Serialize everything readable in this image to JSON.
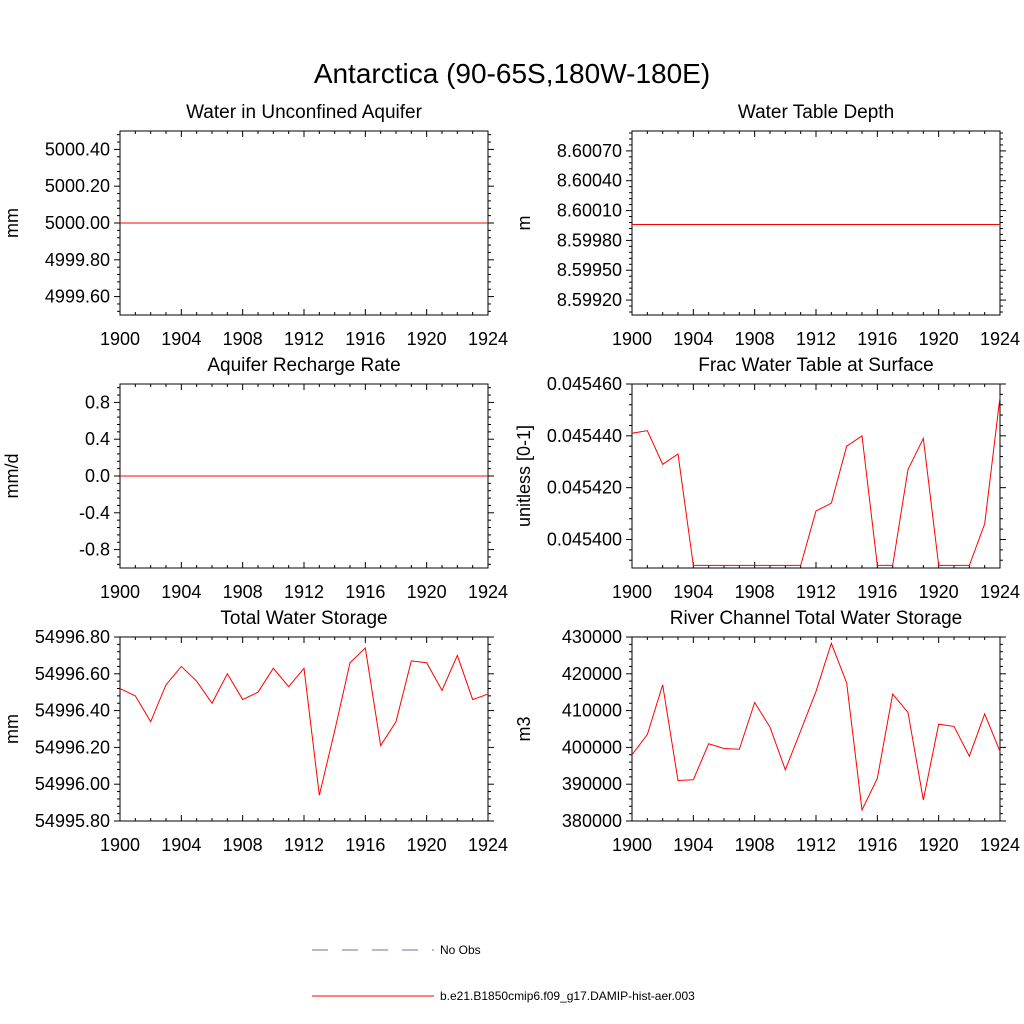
{
  "figure": {
    "title": "Antarctica (90-65S,180W-180E)"
  },
  "colors": {
    "model": "#ff0000",
    "obs": "#6f6fa8",
    "axis": "#000000"
  },
  "legend": {
    "entries": [
      {
        "label": "No Obs",
        "style": "dashed",
        "color": "#6f6fa8"
      },
      {
        "label": "b.e21.B1850cmip6.f09_g17.DAMIP-hist-aer.003",
        "style": "solid",
        "color": "#ff0000"
      }
    ]
  },
  "chart_data": [
    {
      "type": "line",
      "title": "Water in Unconfined Aquifer",
      "ylabel": "mm",
      "xlim": [
        1900,
        1924
      ],
      "ylim": [
        4999.5,
        5000.5
      ],
      "x_ticks": [
        "1900",
        "1904",
        "1908",
        "1912",
        "1916",
        "1920",
        "1924"
      ],
      "y_ticks": [
        {
          "value": 4999.6,
          "label": "4999.60"
        },
        {
          "value": 4999.8,
          "label": "4999.80"
        },
        {
          "value": 5000.0,
          "label": "5000.00"
        },
        {
          "value": 5000.2,
          "label": "5000.20"
        },
        {
          "value": 5000.4,
          "label": "5000.40"
        }
      ],
      "series": [
        {
          "x": [
            1900,
            1924
          ],
          "y": [
            5000.0,
            5000.0
          ]
        }
      ]
    },
    {
      "type": "line",
      "title": "Water Table Depth",
      "ylabel": "m",
      "xlim": [
        1900,
        1924
      ],
      "ylim": [
        8.59905,
        8.6009
      ],
      "x_ticks": [
        "1900",
        "1904",
        "1908",
        "1912",
        "1916",
        "1920",
        "1924"
      ],
      "y_ticks": [
        {
          "value": 8.5992,
          "label": "8.59920"
        },
        {
          "value": 8.5995,
          "label": "8.59950"
        },
        {
          "value": 8.5998,
          "label": "8.59980"
        },
        {
          "value": 8.6001,
          "label": "8.60010"
        },
        {
          "value": 8.6004,
          "label": "8.60040"
        },
        {
          "value": 8.6007,
          "label": "8.60070"
        }
      ],
      "series": [
        {
          "x": [
            1900,
            1924
          ],
          "y": [
            8.59996,
            8.59996
          ]
        }
      ]
    },
    {
      "type": "line",
      "title": "Aquifer Recharge Rate",
      "ylabel": "mm/d",
      "xlim": [
        1900,
        1924
      ],
      "ylim": [
        -1.0,
        1.0
      ],
      "x_ticks": [
        "1900",
        "1904",
        "1908",
        "1912",
        "1916",
        "1920",
        "1924"
      ],
      "y_ticks": [
        {
          "value": -0.8,
          "label": "-0.8"
        },
        {
          "value": -0.4,
          "label": "-0.4"
        },
        {
          "value": 0.0,
          "label": "0.0"
        },
        {
          "value": 0.4,
          "label": "0.4"
        },
        {
          "value": 0.8,
          "label": "0.8"
        }
      ],
      "series": [
        {
          "x": [
            1900,
            1924
          ],
          "y": [
            0.0,
            0.0
          ]
        }
      ]
    },
    {
      "type": "line",
      "title": "Frac Water Table at Surface",
      "ylabel": "unitless [0-1]",
      "xlim": [
        1900,
        1924
      ],
      "ylim": [
        0.045389,
        0.04546
      ],
      "x_ticks": [
        "1900",
        "1904",
        "1908",
        "1912",
        "1916",
        "1920",
        "1924"
      ],
      "y_ticks": [
        {
          "value": 0.0454,
          "label": "0.045400"
        },
        {
          "value": 0.04542,
          "label": "0.045420"
        },
        {
          "value": 0.04544,
          "label": "0.045440"
        },
        {
          "value": 0.04546,
          "label": "0.045460"
        }
      ],
      "series": [
        {
          "x": [
            1900,
            1901,
            1902,
            1903,
            1904,
            1905,
            1906,
            1907,
            1908,
            1909,
            1910,
            1911,
            1912,
            1913,
            1914,
            1915,
            1916,
            1917,
            1918,
            1919,
            1920,
            1921,
            1922,
            1923,
            1924
          ],
          "y": [
            0.045441,
            0.045442,
            0.045429,
            0.045433,
            0.04539,
            0.04539,
            0.04539,
            0.04539,
            0.04539,
            0.04539,
            0.04539,
            0.04539,
            0.045411,
            0.045414,
            0.045436,
            0.04544,
            0.04539,
            0.04539,
            0.045427,
            0.045439,
            0.04539,
            0.04539,
            0.04539,
            0.045406,
            0.045455
          ]
        }
      ]
    },
    {
      "type": "line",
      "title": "Total Water Storage",
      "ylabel": "mm",
      "xlim": [
        1900,
        1924
      ],
      "ylim": [
        54995.8,
        54996.8
      ],
      "x_ticks": [
        "1900",
        "1904",
        "1908",
        "1912",
        "1916",
        "1920",
        "1924"
      ],
      "y_ticks": [
        {
          "value": 54995.8,
          "label": "54995.80"
        },
        {
          "value": 54996.0,
          "label": "54996.00"
        },
        {
          "value": 54996.2,
          "label": "54996.20"
        },
        {
          "value": 54996.4,
          "label": "54996.40"
        },
        {
          "value": 54996.6,
          "label": "54996.60"
        },
        {
          "value": 54996.8,
          "label": "54996.80"
        }
      ],
      "series": [
        {
          "x": [
            1900,
            1901,
            1902,
            1903,
            1904,
            1905,
            1906,
            1907,
            1908,
            1909,
            1910,
            1911,
            1912,
            1913,
            1914,
            1915,
            1916,
            1917,
            1918,
            1919,
            1920,
            1921,
            1922,
            1923,
            1924
          ],
          "y": [
            54996.52,
            54996.48,
            54996.34,
            54996.54,
            54996.64,
            54996.56,
            54996.44,
            54996.6,
            54996.46,
            54996.5,
            54996.63,
            54996.53,
            54996.63,
            54995.94,
            54996.29,
            54996.66,
            54996.74,
            54996.21,
            54996.34,
            54996.67,
            54996.66,
            54996.51,
            54996.7,
            54996.46,
            54996.49
          ]
        }
      ]
    },
    {
      "type": "line",
      "title": "River Channel Total Water Storage",
      "ylabel": "m3",
      "xlim": [
        1900,
        1924
      ],
      "ylim": [
        380000,
        430000
      ],
      "x_ticks": [
        "1900",
        "1904",
        "1908",
        "1912",
        "1916",
        "1920",
        "1924"
      ],
      "y_ticks": [
        {
          "value": 380000,
          "label": "380000"
        },
        {
          "value": 390000,
          "label": "390000"
        },
        {
          "value": 400000,
          "label": "400000"
        },
        {
          "value": 410000,
          "label": "410000"
        },
        {
          "value": 420000,
          "label": "420000"
        },
        {
          "value": 430000,
          "label": "430000"
        }
      ],
      "series": [
        {
          "x": [
            1900,
            1901,
            1902,
            1903,
            1904,
            1905,
            1906,
            1907,
            1908,
            1909,
            1910,
            1911,
            1912,
            1913,
            1914,
            1915,
            1916,
            1917,
            1918,
            1919,
            1920,
            1921,
            1922,
            1923,
            1924
          ],
          "y": [
            398000,
            403500,
            417000,
            391000,
            391200,
            401000,
            399700,
            399500,
            412200,
            405500,
            393900,
            404500,
            415200,
            428300,
            417500,
            383000,
            391600,
            414500,
            409500,
            385700,
            406300,
            405700,
            397600,
            409100,
            398900
          ]
        }
      ]
    }
  ]
}
